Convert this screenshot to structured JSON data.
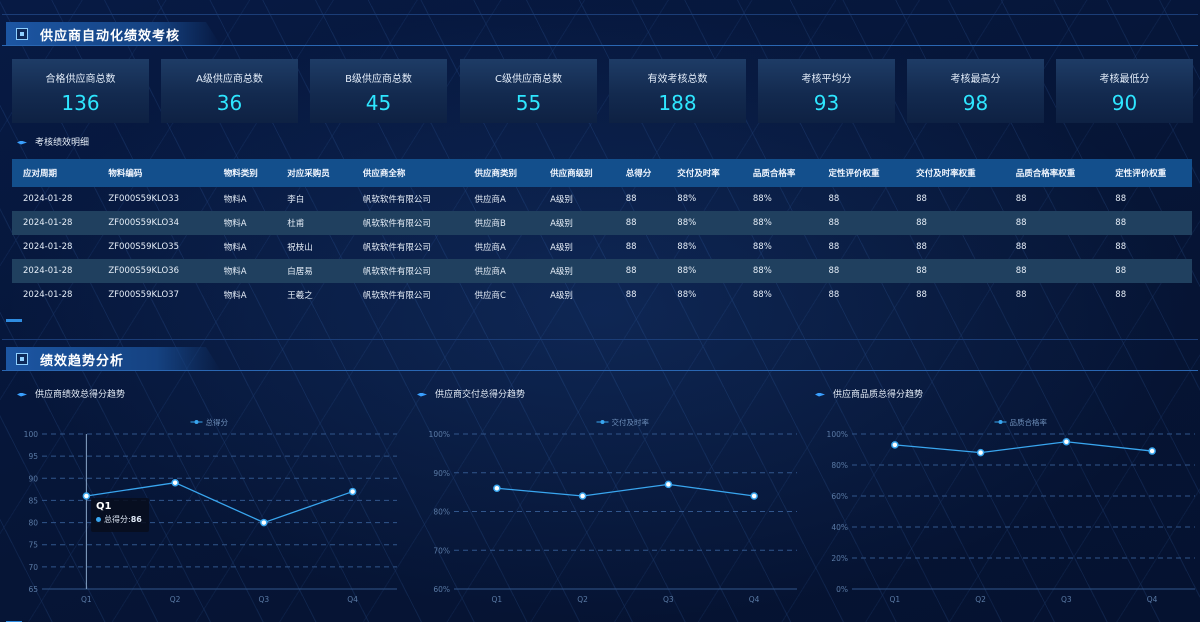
{
  "section1": {
    "title": "供应商自动化绩效考核"
  },
  "kpis": [
    {
      "label": "合格供应商总数",
      "value": "136"
    },
    {
      "label": "A级供应商总数",
      "value": "36"
    },
    {
      "label": "B级供应商总数",
      "value": "45"
    },
    {
      "label": "C级供应商总数",
      "value": "55"
    },
    {
      "label": "有效考核总数",
      "value": "188"
    },
    {
      "label": "考核平均分",
      "value": "93"
    },
    {
      "label": "考核最高分",
      "value": "98"
    },
    {
      "label": "考核最低分",
      "value": "90"
    }
  ],
  "detail": {
    "title": "考核绩效明细"
  },
  "table": {
    "headers": [
      "应对周期",
      "物料编码",
      "物料类别",
      "对应采购员",
      "供应商全称",
      "供应商类别",
      "供应商级别",
      "总得分",
      "交付及时率",
      "品质合格率",
      "定性评价权重",
      "交付及时率权重",
      "品质合格率权重",
      "定性评价权重"
    ],
    "rows": [
      [
        "2024-01-28",
        "ZF000S59KLO33",
        "物料A",
        "李白",
        "帆软软件有限公司",
        "供应商A",
        "A级别",
        "88",
        "88%",
        "88%",
        "88",
        "88",
        "88",
        "88"
      ],
      [
        "2024-01-28",
        "ZF000S59KLO34",
        "物料A",
        "杜甫",
        "帆软软件有限公司",
        "供应商B",
        "A级别",
        "88",
        "88%",
        "88%",
        "88",
        "88",
        "88",
        "88"
      ],
      [
        "2024-01-28",
        "ZF000S59KLO35",
        "物料A",
        "祝枝山",
        "帆软软件有限公司",
        "供应商A",
        "A级别",
        "88",
        "88%",
        "88%",
        "88",
        "88",
        "88",
        "88"
      ],
      [
        "2024-01-28",
        "ZF000S59KLO36",
        "物料A",
        "白居易",
        "帆软软件有限公司",
        "供应商A",
        "A级别",
        "88",
        "88%",
        "88%",
        "88",
        "88",
        "88",
        "88"
      ],
      [
        "2024-01-28",
        "ZF000S59KLO37",
        "物料A",
        "王羲之",
        "帆软软件有限公司",
        "供应商C",
        "A级别",
        "88",
        "88%",
        "88%",
        "88",
        "88",
        "88",
        "88"
      ]
    ]
  },
  "section2": {
    "title": "绩效趋势分析"
  },
  "colors": {
    "accent": "#2ee6ff",
    "line": "#39a6ef",
    "header_row": "#134f8c"
  },
  "chart_data": [
    {
      "type": "line",
      "title": "供应商绩效总得分趋势",
      "categories": [
        "Q1",
        "Q2",
        "Q3",
        "Q4"
      ],
      "series": [
        {
          "name": "总得分",
          "values": [
            86,
            89,
            80,
            87
          ]
        }
      ],
      "ylim": [
        65,
        100
      ],
      "yticks": [
        "65",
        "70",
        "75",
        "80",
        "85",
        "90",
        "95",
        "100"
      ],
      "tooltip": {
        "title": "Q1",
        "label": "总得分",
        "value": "86"
      }
    },
    {
      "type": "line",
      "title": "供应商交付总得分趋势",
      "categories": [
        "Q1",
        "Q2",
        "Q3",
        "Q4"
      ],
      "series": [
        {
          "name": "交付及时率",
          "values": [
            86,
            84,
            87,
            84
          ]
        }
      ],
      "ylim": [
        60,
        100
      ],
      "yticks": [
        "60%",
        "70%",
        "80%",
        "90%",
        "100%"
      ]
    },
    {
      "type": "line",
      "title": "供应商品质总得分趋势",
      "categories": [
        "Q1",
        "Q2",
        "Q3",
        "Q4"
      ],
      "series": [
        {
          "name": "品质合格率",
          "values": [
            93,
            88,
            95,
            89
          ]
        }
      ],
      "ylim": [
        0,
        100
      ],
      "yticks": [
        "0%",
        "20%",
        "40%",
        "60%",
        "80%",
        "100%"
      ]
    }
  ]
}
